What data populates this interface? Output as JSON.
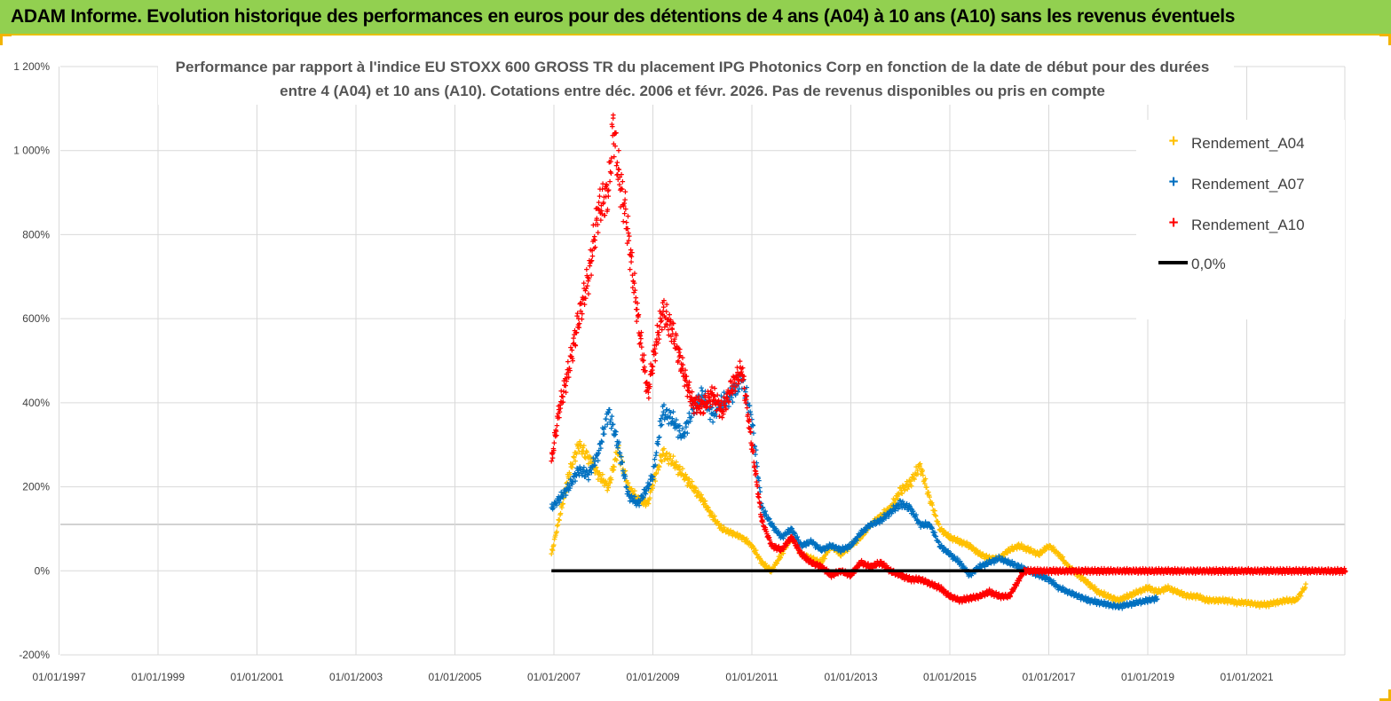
{
  "banner": {
    "title": "ADAM Informe. Evolution historique des performances en euros pour des détentions de 4 ans (A04) à 10 ans (A10) sans les revenus éventuels"
  },
  "colors": {
    "banner": "#92d050",
    "A04": "#ffc000",
    "A07": "#0070c0",
    "A10": "#ff0000",
    "zero": "#000000"
  },
  "chart_data": {
    "type": "scatter",
    "title_line1": "Performance par rapport à l'indice EU STOXX 600 GROSS TR  du placement IPG Photonics Corp en fonction de la date de début pour des durées",
    "title_line2": "entre 4 (A04) et 10 ans (A10). Cotations entre déc. 2006 et févr. 2026. Pas de revenus disponibles ou pris en compte",
    "ylim": [
      -200,
      1200
    ],
    "y_ticks": [
      "-200%",
      "0%",
      "200%",
      "400%",
      "600%",
      "800%",
      "1 000%",
      "1 200%"
    ],
    "x_ticks": [
      "01/01/1997",
      "01/01/1999",
      "01/01/2001",
      "01/01/2003",
      "01/01/2005",
      "01/01/2007",
      "01/01/2009",
      "01/01/2011",
      "01/01/2013",
      "01/01/2015",
      "01/01/2017",
      "01/01/2019",
      "01/01/2021"
    ],
    "xlim": [
      1997.0,
      2023.2
    ],
    "series": [
      {
        "name": "Rendement_A04",
        "x": [
          2006.95,
          2007.1,
          2007.3,
          2007.5,
          2007.7,
          2007.9,
          2008.1,
          2008.3,
          2008.5,
          2008.7,
          2008.9,
          2009.0,
          2009.2,
          2009.4,
          2009.6,
          2009.8,
          2010.0,
          2010.2,
          2010.4,
          2010.6,
          2010.8,
          2011.0,
          2011.2,
          2011.4,
          2011.6,
          2011.8,
          2012.0,
          2012.2,
          2012.4,
          2012.6,
          2012.8,
          2013.0,
          2013.2,
          2013.4,
          2013.6,
          2013.8,
          2014.0,
          2014.2,
          2014.4,
          2014.6,
          2014.8,
          2015.0,
          2015.2,
          2015.4,
          2015.6,
          2015.8,
          2016.0,
          2016.2,
          2016.4,
          2016.6,
          2016.8,
          2017.0,
          2017.2,
          2017.4,
          2017.6,
          2017.8,
          2018.0,
          2018.2,
          2018.4,
          2018.6,
          2018.8,
          2019.0,
          2019.2,
          2019.4,
          2019.6,
          2019.8,
          2020.0,
          2020.2,
          2020.4,
          2020.6,
          2020.8,
          2021.0,
          2021.2,
          2021.4,
          2021.6,
          2021.8,
          2022.0,
          2022.2
        ],
        "y": [
          40,
          120,
          230,
          300,
          270,
          230,
          200,
          290,
          200,
          170,
          160,
          210,
          280,
          260,
          230,
          200,
          170,
          130,
          100,
          90,
          80,
          60,
          20,
          0,
          40,
          80,
          40,
          30,
          20,
          60,
          40,
          60,
          80,
          110,
          130,
          150,
          190,
          210,
          250,
          170,
          100,
          80,
          70,
          60,
          40,
          30,
          30,
          50,
          60,
          50,
          40,
          60,
          40,
          10,
          -10,
          -30,
          -50,
          -60,
          -70,
          -60,
          -50,
          -40,
          -50,
          -40,
          -50,
          -60,
          -60,
          -70,
          -70,
          -70,
          -75,
          -75,
          -80,
          -80,
          -75,
          -70,
          -70,
          -35
        ]
      },
      {
        "name": "Rendement_A07",
        "x": [
          2006.95,
          2007.1,
          2007.3,
          2007.5,
          2007.7,
          2007.9,
          2008.1,
          2008.3,
          2008.5,
          2008.7,
          2008.9,
          2009.0,
          2009.2,
          2009.4,
          2009.6,
          2009.8,
          2010.0,
          2010.2,
          2010.4,
          2010.6,
          2010.8,
          2011.0,
          2011.2,
          2011.4,
          2011.6,
          2011.8,
          2012.0,
          2012.2,
          2012.4,
          2012.6,
          2012.8,
          2013.0,
          2013.2,
          2013.4,
          2013.6,
          2013.8,
          2014.0,
          2014.2,
          2014.4,
          2014.6,
          2014.8,
          2015.0,
          2015.2,
          2015.4,
          2015.6,
          2015.8,
          2016.0,
          2016.2,
          2016.4,
          2016.6,
          2016.8,
          2017.0,
          2017.2,
          2017.4,
          2017.6,
          2017.8,
          2018.0,
          2018.2,
          2018.4,
          2018.6,
          2018.8,
          2019.0,
          2019.2
        ],
        "y": [
          150,
          170,
          200,
          240,
          230,
          280,
          380,
          300,
          180,
          160,
          200,
          230,
          380,
          360,
          320,
          380,
          420,
          370,
          400,
          420,
          460,
          360,
          150,
          110,
          80,
          100,
          60,
          70,
          50,
          60,
          50,
          60,
          90,
          110,
          120,
          140,
          160,
          150,
          110,
          110,
          60,
          40,
          20,
          -10,
          10,
          20,
          30,
          20,
          10,
          0,
          -10,
          -20,
          -40,
          -50,
          -60,
          -70,
          -75,
          -80,
          -85,
          -80,
          -75,
          -70,
          -65
        ]
      },
      {
        "name": "Rendement_A10",
        "x": [
          2006.95,
          2007.1,
          2007.3,
          2007.5,
          2007.7,
          2007.9,
          2008.1,
          2008.2,
          2008.3,
          2008.45,
          2008.6,
          2008.75,
          2008.9,
          2009.0,
          2009.2,
          2009.4,
          2009.6,
          2009.8,
          2010.0,
          2010.2,
          2010.4,
          2010.6,
          2010.8,
          2011.0,
          2011.2,
          2011.4,
          2011.6,
          2011.8,
          2012.0,
          2012.2,
          2012.4,
          2012.6,
          2012.8,
          2013.0,
          2013.2,
          2013.4,
          2013.6,
          2013.8,
          2014.0,
          2014.2,
          2014.4,
          2014.6,
          2014.8,
          2015.0,
          2015.2,
          2015.4,
          2015.6,
          2015.8,
          2016.0,
          2016.2,
          2016.5,
          2017.0,
          2017.5,
          2018.0,
          2018.5,
          2019.0,
          2019.5,
          2020.0,
          2020.5,
          2021.0,
          2021.5,
          2022.0,
          2022.5,
          2023.0
        ],
        "y": [
          260,
          380,
          480,
          600,
          700,
          860,
          900,
          1060,
          950,
          850,
          700,
          550,
          420,
          500,
          620,
          570,
          480,
          400,
          390,
          420,
          380,
          440,
          480,
          300,
          120,
          60,
          50,
          80,
          40,
          20,
          10,
          -10,
          0,
          -10,
          20,
          10,
          20,
          0,
          -10,
          -20,
          -20,
          -30,
          -40,
          -60,
          -70,
          -65,
          -60,
          -50,
          -60,
          -60,
          0,
          0,
          0,
          0,
          0,
          0,
          0,
          0,
          0,
          0,
          0,
          0,
          0,
          0
        ]
      }
    ],
    "zero_line": {
      "name": "0,0%",
      "value": 0,
      "x_start": 2006.95,
      "x_end": 2016.5
    },
    "legend": {
      "position": "top-right",
      "entries": [
        "Rendement_A04",
        "Rendement_A07",
        "Rendement_A10",
        "0,0%"
      ]
    }
  }
}
